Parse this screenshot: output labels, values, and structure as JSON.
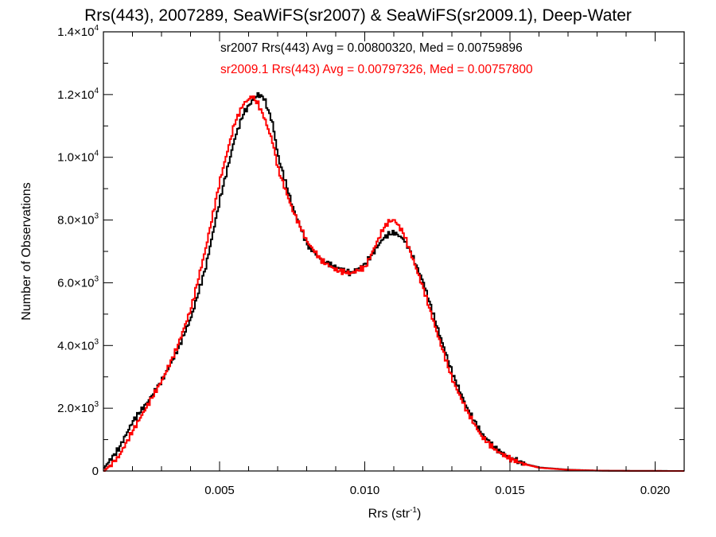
{
  "chart_data": {
    "type": "line",
    "title": "Rrs(443), 2007289, SeaWiFS(sr2007) & SeaWiFS(sr2009.1), Deep-Water",
    "xlabel": "Rrs (str",
    "xlabel_superscript": "-1",
    "xlabel_suffix": ")",
    "ylabel": "Number of Observations",
    "xlim": [
      0.001,
      0.021
    ],
    "ylim": [
      0,
      14000
    ],
    "x_ticks": [
      {
        "value": 0.005,
        "label": "0.005"
      },
      {
        "value": 0.01,
        "label": "0.010"
      },
      {
        "value": 0.015,
        "label": "0.015"
      },
      {
        "value": 0.02,
        "label": "0.020"
      }
    ],
    "y_ticks": [
      {
        "value": 0,
        "mantissa": "0",
        "exp": ""
      },
      {
        "value": 2000,
        "mantissa": "2.0×10",
        "exp": "3"
      },
      {
        "value": 4000,
        "mantissa": "4.0×10",
        "exp": "3"
      },
      {
        "value": 6000,
        "mantissa": "6.0×10",
        "exp": "3"
      },
      {
        "value": 8000,
        "mantissa": "8.0×10",
        "exp": "3"
      },
      {
        "value": 10000,
        "mantissa": "1.0×10",
        "exp": "4"
      },
      {
        "value": 12000,
        "mantissa": "1.2×10",
        "exp": "4"
      },
      {
        "value": 14000,
        "mantissa": "1.4×10",
        "exp": "4"
      }
    ],
    "legend_position": "top-center",
    "grid": false,
    "series": [
      {
        "name": "sr2007",
        "legend_text": "sr2007 Rrs(443) Avg = 0.00800320, Med = 0.00759896",
        "color": "#000000",
        "x": [
          0.001,
          0.0015,
          0.002,
          0.0025,
          0.003,
          0.0035,
          0.004,
          0.0045,
          0.005,
          0.0055,
          0.0058,
          0.0061,
          0.0063,
          0.0065,
          0.0068,
          0.007,
          0.0075,
          0.008,
          0.0085,
          0.009,
          0.0095,
          0.01,
          0.0103,
          0.0106,
          0.0108,
          0.011,
          0.0113,
          0.0115,
          0.012,
          0.0125,
          0.013,
          0.0135,
          0.014,
          0.0145,
          0.015,
          0.0155,
          0.016,
          0.017,
          0.018,
          0.019,
          0.021
        ],
        "y": [
          100,
          700,
          1600,
          2200,
          2900,
          3800,
          4900,
          6500,
          8700,
          10600,
          11400,
          11800,
          12000,
          11900,
          11100,
          10000,
          8400,
          7200,
          6700,
          6500,
          6300,
          6600,
          7000,
          7400,
          7550,
          7600,
          7400,
          7100,
          6000,
          4500,
          3100,
          2000,
          1200,
          700,
          400,
          220,
          110,
          40,
          12,
          4,
          0
        ]
      },
      {
        "name": "sr2009.1",
        "legend_text": "sr2009.1 Rrs(443) Avg = 0.00797326, Med = 0.00757800",
        "color": "#ff0000",
        "x": [
          0.001,
          0.0015,
          0.002,
          0.0025,
          0.003,
          0.0035,
          0.004,
          0.0045,
          0.005,
          0.0055,
          0.0058,
          0.0061,
          0.0063,
          0.0065,
          0.0068,
          0.007,
          0.0075,
          0.008,
          0.0085,
          0.009,
          0.0095,
          0.01,
          0.0103,
          0.0106,
          0.0108,
          0.011,
          0.0113,
          0.0115,
          0.012,
          0.0125,
          0.013,
          0.0135,
          0.014,
          0.0145,
          0.015,
          0.0155,
          0.016,
          0.017,
          0.018,
          0.019,
          0.021
        ],
        "y": [
          0,
          450,
          1300,
          2100,
          2900,
          3900,
          5200,
          7100,
          9300,
          11100,
          11700,
          11950,
          11700,
          11300,
          10500,
          9600,
          8300,
          7300,
          6700,
          6400,
          6300,
          6500,
          7100,
          7700,
          7950,
          8000,
          7600,
          7100,
          5800,
          4300,
          2900,
          1900,
          1100,
          650,
          380,
          210,
          100,
          35,
          10,
          3,
          0
        ]
      }
    ]
  }
}
